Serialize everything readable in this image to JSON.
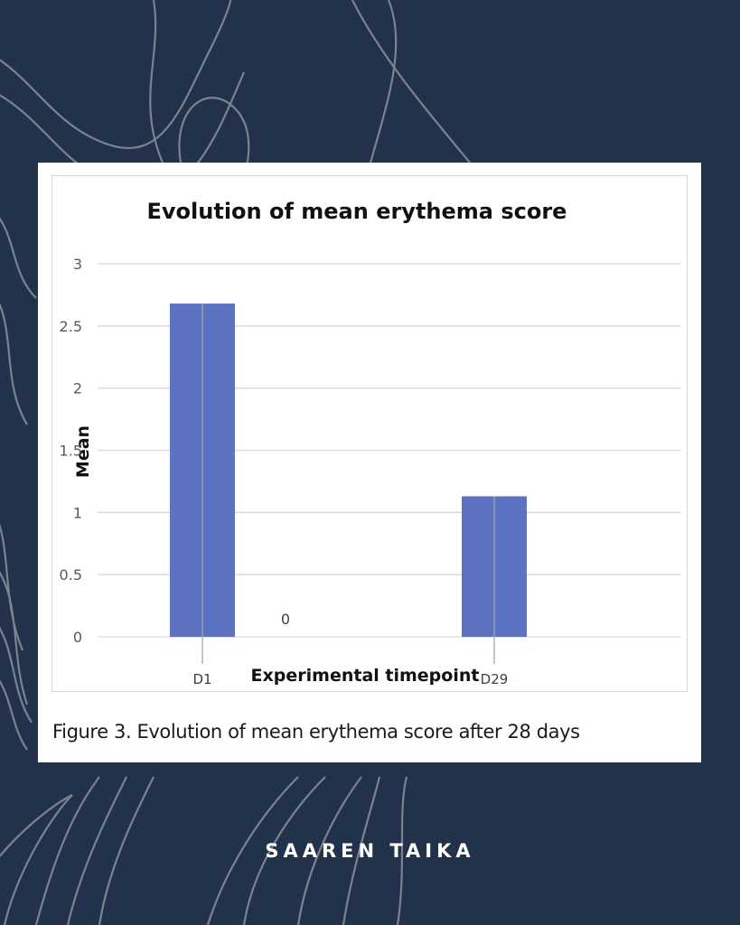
{
  "chart_data": {
    "type": "bar",
    "title": "Evolution of mean erythema score",
    "xlabel": "Experimental timepoint",
    "ylabel": "Mean",
    "categories": [
      "D1",
      "D29"
    ],
    "values": [
      2.68,
      1.13
    ],
    "yticks": [
      "0",
      "0.5",
      "1",
      "1.5",
      "2",
      "2.5",
      "3"
    ],
    "ylim": [
      0,
      3
    ],
    "grid": true,
    "bar_color": "#5b73c1",
    "annotations": [
      {
        "text": "0"
      }
    ]
  },
  "caption": "Figure 3. Evolution of mean erythema score after 28 days",
  "brand": "SAAREN TAIKA",
  "colors": {
    "background": "#22324a",
    "bar": "#5b73c1"
  }
}
